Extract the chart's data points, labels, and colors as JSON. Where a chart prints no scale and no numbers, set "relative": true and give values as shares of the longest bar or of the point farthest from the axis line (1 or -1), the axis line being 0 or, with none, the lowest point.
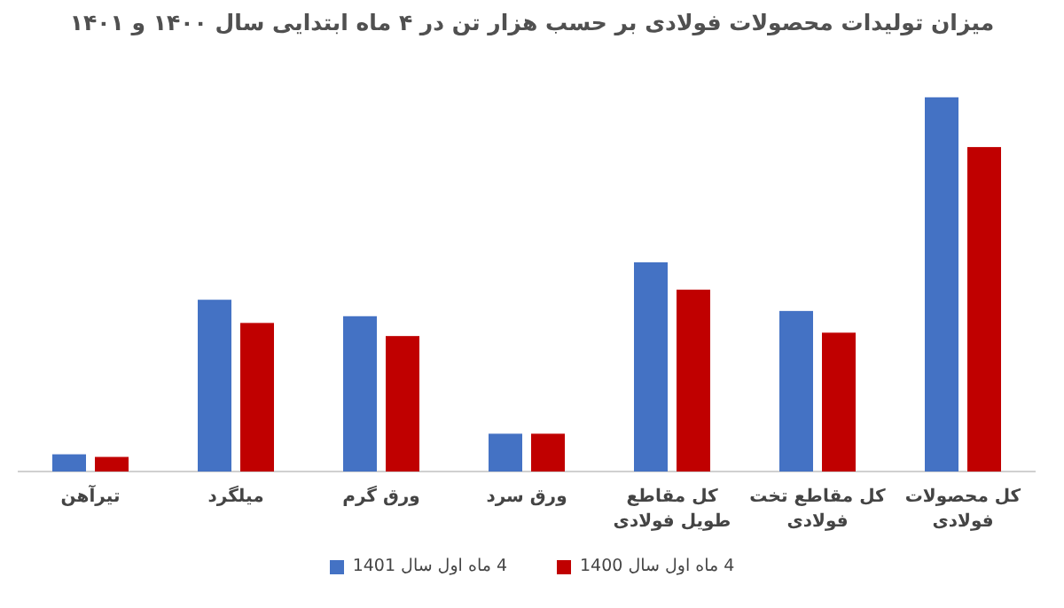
{
  "chart_data": {
    "type": "bar",
    "title": "میزان تولیدات محصولات فولادی بر حسب هزار تن در ۴ ماه ابتدایی سال ۱۴۰۰ و ۱۴۰۱",
    "categories": [
      "تیرآهن",
      "میلگرد",
      "ورق گرم",
      "ورق سرد",
      "کل مقاطع طویل فولادی",
      "کل مقاطع تخت فولادی",
      "کل محصولات فولادی"
    ],
    "relative": true,
    "series": [
      {
        "name": "4 ماه اول سال 1401",
        "color": "#4472c4",
        "values": [
          0.046,
          0.459,
          0.415,
          0.101,
          0.559,
          0.429,
          1
        ]
      },
      {
        "name": "4 ماه اول سال 1400",
        "color": "#c00000",
        "values": [
          0.039,
          0.397,
          0.362,
          0.101,
          0.486,
          0.371,
          0.867
        ]
      }
    ],
    "legend": "bottom"
  }
}
